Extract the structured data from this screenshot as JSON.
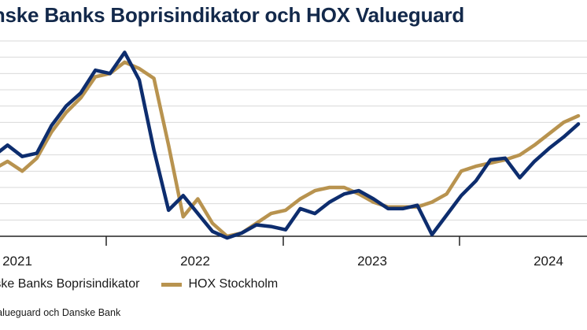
{
  "title": "Danske Banks Boprisindikator och HOX Valueguard",
  "source": "Källa: Valueguard och Danske Bank",
  "colors": {
    "danske": "#0d2d6e",
    "hox": "#b8934f",
    "grid": "#d9d9d9",
    "axis": "#222222"
  },
  "chart_data": {
    "type": "line",
    "title": "Danske Banks Boprisindikator och HOX Valueguard",
    "xlabel": "",
    "ylabel": "",
    "ylim": [
      0,
      12
    ],
    "grid": true,
    "legend": "bottom-left",
    "x_ticks": [
      "2021",
      "2022",
      "2023",
      "2024"
    ],
    "x_start": "2020-10",
    "series": [
      {
        "name": "Danske Banks Boprisindikator",
        "color": "#0d2d6e",
        "values": [
          4.9,
          5.6,
          4.9,
          5.1,
          6.8,
          8.0,
          8.8,
          10.2,
          10.0,
          11.3,
          9.6,
          5.3,
          1.6,
          2.5,
          1.4,
          0.3,
          -0.1,
          0.2,
          0.7,
          0.6,
          0.4,
          1.7,
          1.4,
          2.1,
          2.6,
          2.8,
          2.3,
          1.7,
          1.7,
          1.9,
          0.1,
          1.3,
          2.5,
          3.4,
          4.7,
          4.8,
          3.6,
          4.6,
          5.4,
          6.1,
          6.9
        ]
      },
      {
        "name": "HOX Stockholm",
        "color": "#b8934f",
        "values": [
          4.1,
          4.6,
          4.0,
          4.8,
          6.4,
          7.6,
          8.5,
          9.8,
          10.0,
          10.7,
          10.3,
          9.7,
          5.6,
          1.2,
          2.3,
          0.8,
          0.0,
          0.2,
          0.8,
          1.4,
          1.6,
          2.3,
          2.8,
          3.0,
          3.0,
          2.6,
          2.1,
          1.8,
          1.8,
          1.8,
          2.1,
          2.6,
          4.0,
          4.3,
          4.5,
          4.7,
          5.0,
          5.6,
          6.3,
          7.0,
          7.4
        ]
      }
    ]
  },
  "legend": {
    "items": [
      {
        "label": "Danske Banks Boprisindikator",
        "color": "#0d2d6e"
      },
      {
        "label": "HOX Stockholm",
        "color": "#b8934f"
      }
    ]
  }
}
